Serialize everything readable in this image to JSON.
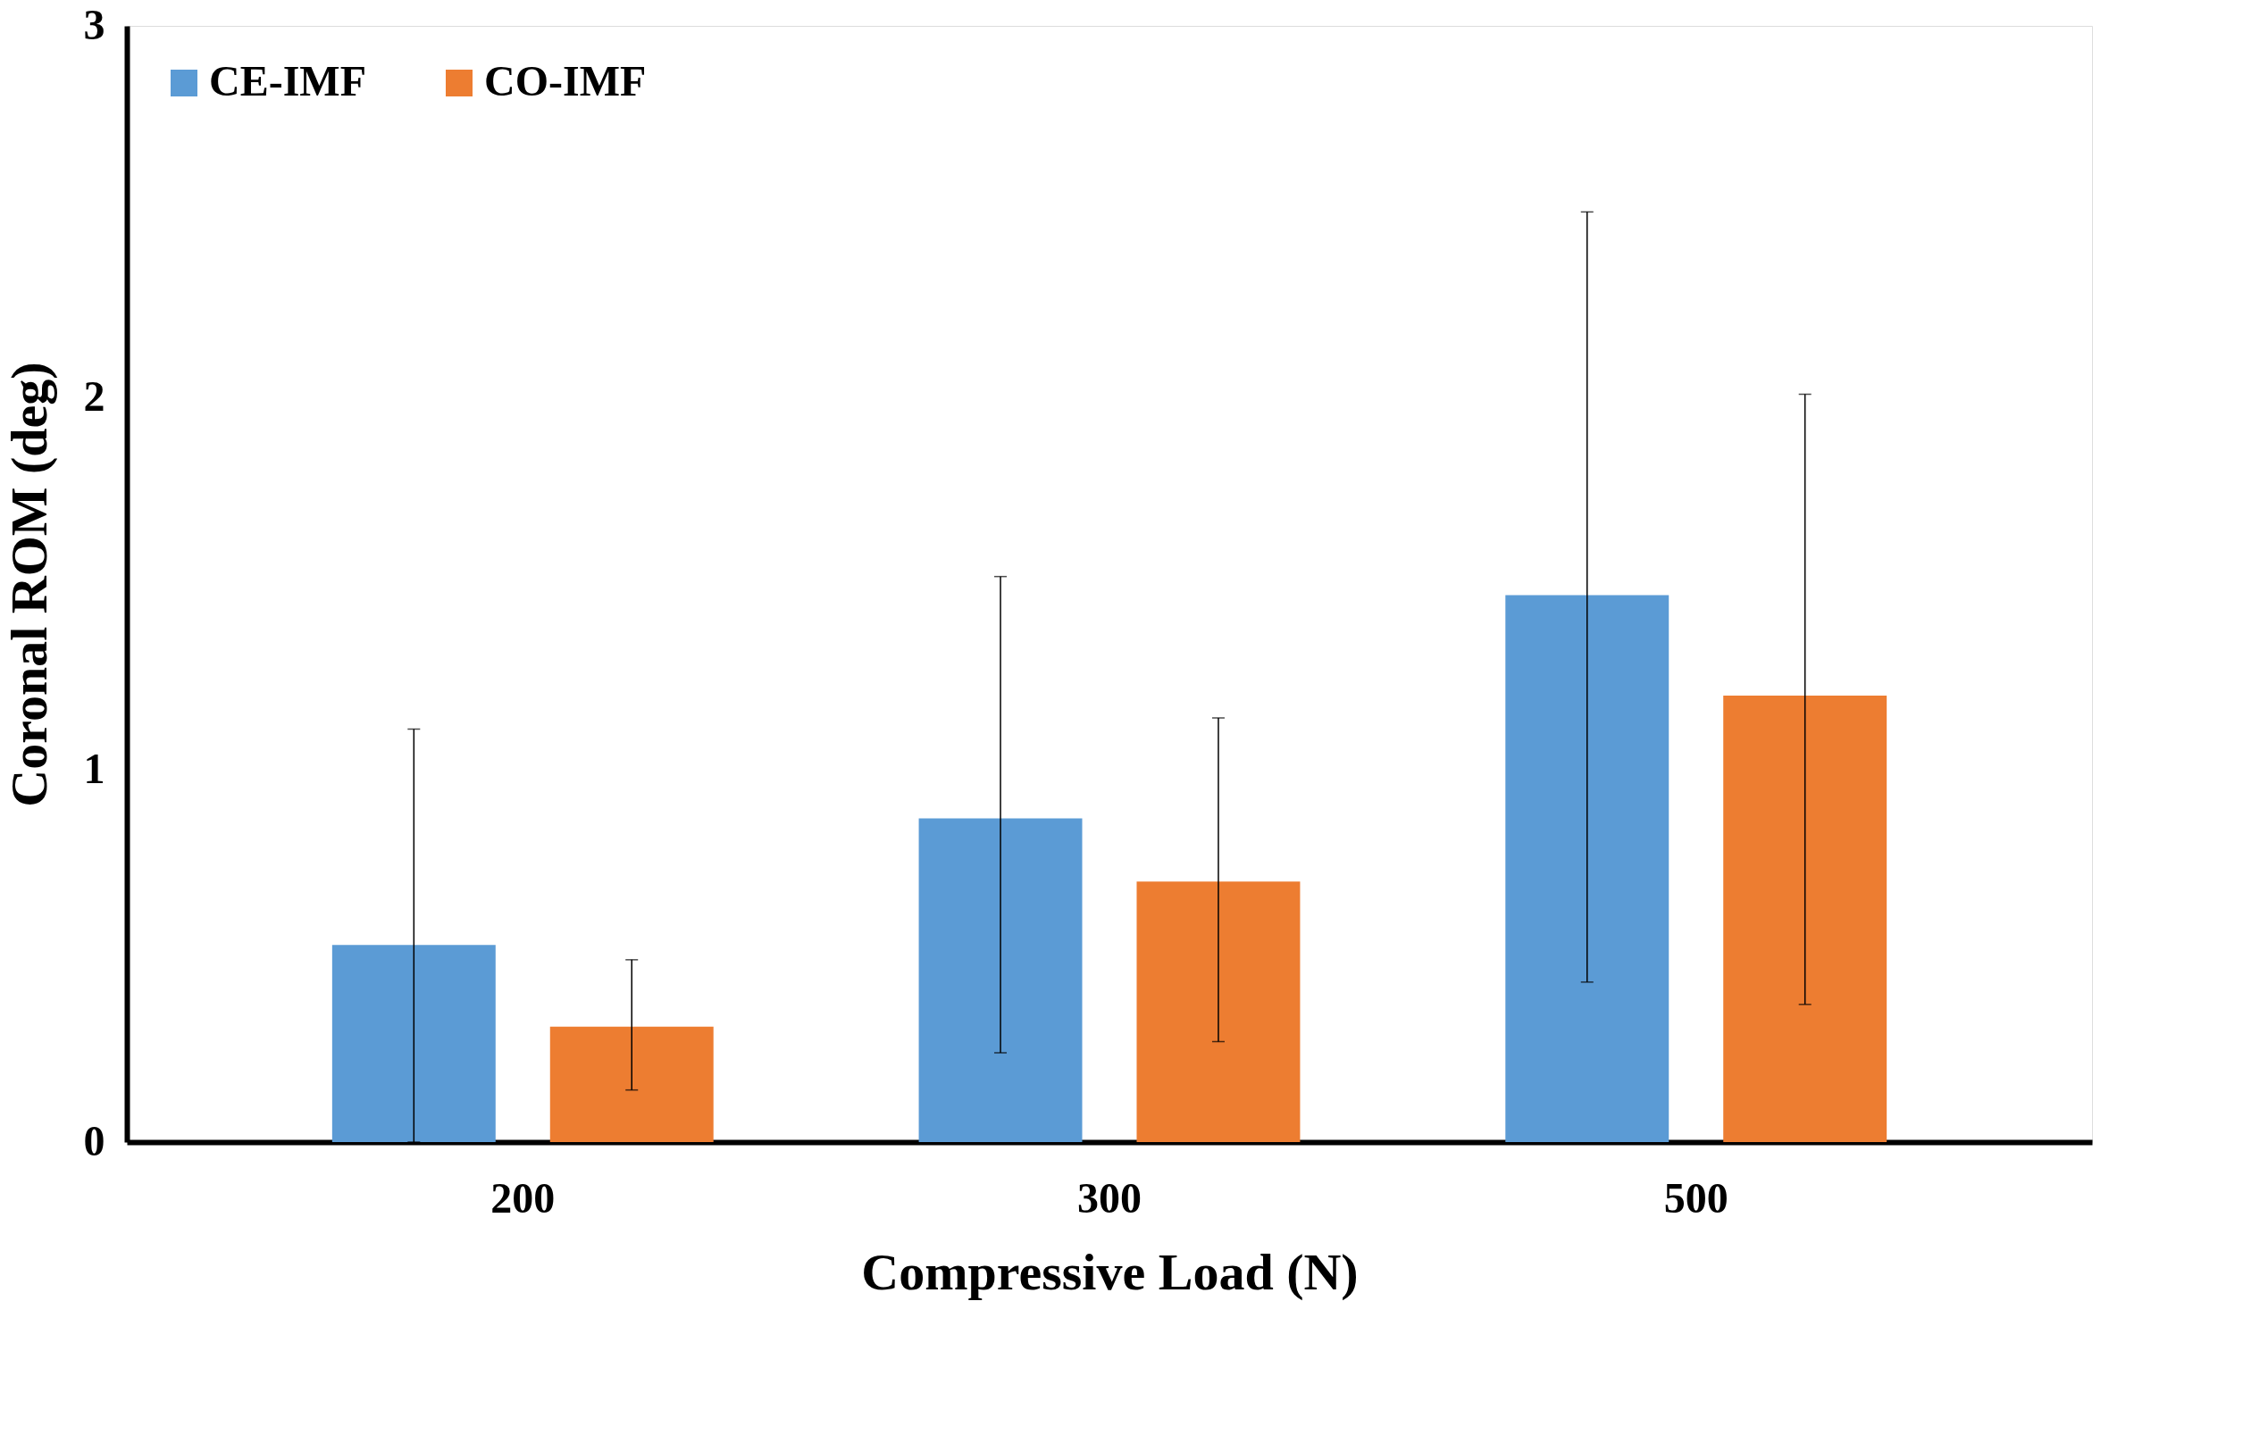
{
  "chart_data": {
    "type": "bar",
    "xlabel": "Compressive Load (N)",
    "ylabel": "Coronal ROM (deg)",
    "categories": [
      "200",
      "300",
      "500"
    ],
    "series": [
      {
        "name": "CE-IMF",
        "color": "#5b9bd5",
        "values": [
          0.53,
          0.87,
          1.47
        ],
        "errors": [
          [
            0,
            1.11
          ],
          [
            0.24,
            1.52
          ],
          [
            0.43,
            2.5
          ]
        ]
      },
      {
        "name": "CO-IMF",
        "color": "#ed7d31",
        "values": [
          0.31,
          0.7,
          1.2
        ],
        "errors": [
          [
            0.14,
            0.49
          ],
          [
            0.27,
            1.14
          ],
          [
            0.37,
            2.01
          ]
        ]
      }
    ],
    "ylim": [
      0,
      3
    ],
    "yticks": [
      0,
      1,
      2,
      3
    ],
    "grid": false,
    "legend": "top left"
  }
}
